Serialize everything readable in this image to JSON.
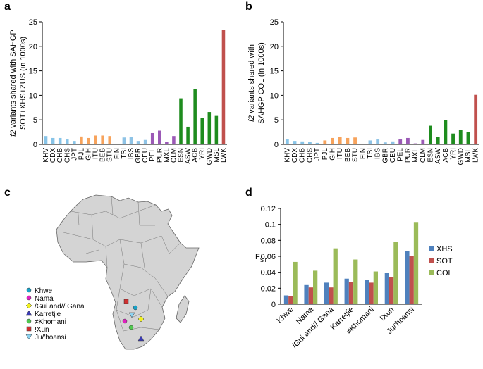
{
  "panels": {
    "a": "a",
    "b": "b",
    "c": "c",
    "d": "d"
  },
  "colors": {
    "east_asia": "#87c4e8",
    "south_asia": "#f7a35c",
    "europe": "#8ec3e6",
    "america": "#9b59b6",
    "africa": "#1e8c1e",
    "lwk": "#c0504d",
    "xhs": "#4f81bd",
    "sot": "#c0504d",
    "col": "#9bbb59"
  },
  "chart_data": [
    {
      "type": "bar",
      "id": "a",
      "ylabel_lines": [
        "f2 variants shared with SAHGP",
        "SOT+XHS+ZUS  (in 1000s)"
      ],
      "ylim": [
        0,
        25
      ],
      "yticks": [
        0,
        5,
        10,
        15,
        20,
        25
      ],
      "categories": [
        "KHV",
        "CDX",
        "CHB",
        "CHS",
        "JPT",
        "PJL",
        "GIH",
        "ITU",
        "BEB",
        "STU",
        "FIN",
        "TSI",
        "IBS",
        "GBR",
        "CEU",
        "PEL",
        "PUR",
        "MXL",
        "CLM",
        "ESN",
        "ASW",
        "ACB",
        "YRI",
        "GWD",
        "MSL",
        "LWK"
      ],
      "groups": [
        "east_asia",
        "east_asia",
        "east_asia",
        "east_asia",
        "east_asia",
        "south_asia",
        "south_asia",
        "south_asia",
        "south_asia",
        "south_asia",
        "europe",
        "europe",
        "europe",
        "europe",
        "europe",
        "america",
        "america",
        "america",
        "america",
        "africa",
        "africa",
        "africa",
        "africa",
        "africa",
        "africa",
        "lwk"
      ],
      "values": [
        1.7,
        1.3,
        1.3,
        1.0,
        0.7,
        1.6,
        1.3,
        1.8,
        1.8,
        1.7,
        0.1,
        1.4,
        1.5,
        0.7,
        0.9,
        2.3,
        2.8,
        0.5,
        1.7,
        9.4,
        3.6,
        11.3,
        5.4,
        6.6,
        5.8,
        23.4
      ]
    },
    {
      "type": "bar",
      "id": "b",
      "ylabel_lines": [
        "f2 variants shared with",
        "SAHGP COL (in 1000s)"
      ],
      "ylim": [
        0,
        25
      ],
      "yticks": [
        0,
        5,
        10,
        15,
        20,
        25
      ],
      "categories": [
        "KHV",
        "CDX",
        "CHB",
        "CHS",
        "JPT",
        "PJL",
        "GIH",
        "ITU",
        "BEB",
        "STU",
        "FIN",
        "TSI",
        "IBS",
        "GBR",
        "CEU",
        "PEL",
        "PUR",
        "MXL",
        "CLM",
        "ESN",
        "ASW",
        "ACB",
        "YRI",
        "GWD",
        "MSL",
        "LWK"
      ],
      "groups": [
        "east_asia",
        "east_asia",
        "east_asia",
        "east_asia",
        "east_asia",
        "south_asia",
        "south_asia",
        "south_asia",
        "south_asia",
        "south_asia",
        "europe",
        "europe",
        "europe",
        "europe",
        "europe",
        "america",
        "america",
        "america",
        "america",
        "africa",
        "africa",
        "africa",
        "africa",
        "africa",
        "africa",
        "lwk"
      ],
      "values": [
        1.0,
        0.7,
        0.6,
        0.5,
        0.3,
        0.8,
        1.3,
        1.5,
        1.3,
        1.4,
        0.1,
        0.8,
        1.0,
        0.4,
        0.6,
        1.0,
        1.3,
        0.2,
        0.9,
        3.8,
        1.5,
        5.0,
        2.2,
        2.9,
        2.5,
        10.1
      ]
    },
    {
      "type": "bar",
      "id": "d",
      "ylabel": "F",
      "ylabel_sub": "ST",
      "ylim": [
        0,
        0.12
      ],
      "yticks": [
        "0",
        "0.02",
        "0.04",
        "0.06",
        "0.08",
        "0.1",
        "0.12"
      ],
      "categories": [
        "Khwe",
        "Nama",
        "/Gui and// Gana",
        "Karretjie",
        "≠Khomani",
        "!Xun",
        "Ju/'hoansi"
      ],
      "series": [
        {
          "name": "XHS",
          "color_key": "xhs",
          "values": [
            0.011,
            0.024,
            0.027,
            0.032,
            0.03,
            0.039,
            0.067
          ]
        },
        {
          "name": "SOT",
          "color_key": "sot",
          "values": [
            0.01,
            0.021,
            0.021,
            0.028,
            0.027,
            0.034,
            0.06
          ]
        },
        {
          "name": "COL",
          "color_key": "col",
          "values": [
            0.053,
            0.042,
            0.07,
            0.056,
            0.041,
            0.078,
            0.103
          ]
        }
      ]
    }
  ],
  "map": {
    "legend": [
      {
        "label": "Khwe",
        "symbol": "circle",
        "color": "#17a2c8"
      },
      {
        "label": "Nama",
        "symbol": "circle",
        "color": "#e020c0"
      },
      {
        "label": "/Gui and// Gana",
        "symbol": "diamond",
        "color": "#f0f020"
      },
      {
        "label": "Karretjie",
        "symbol": "triangle",
        "color": "#3c3cb4"
      },
      {
        "label": "≠Khomani",
        "symbol": "circle",
        "color": "#50c850"
      },
      {
        "label": "!Xun",
        "symbol": "square",
        "color": "#d03030"
      },
      {
        "label": "Ju/'hoansi",
        "symbol": "triangle-down",
        "color": "#8cd2f0"
      }
    ]
  }
}
